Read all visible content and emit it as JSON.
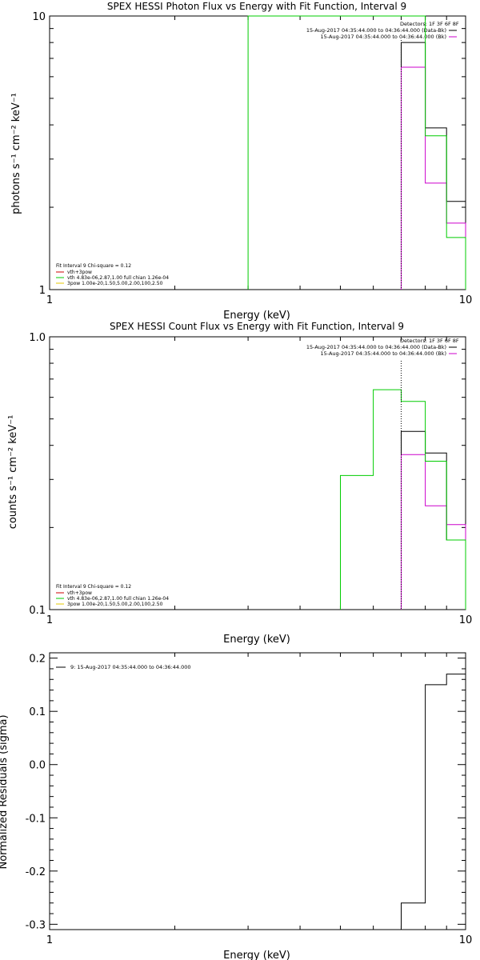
{
  "colors": {
    "background": "#ffffff",
    "axis": "#000000",
    "bk_observed": "#000000",
    "bk_model": "#cc00cc",
    "fit_vth": "#00cc00",
    "fit_vth_alt": "#cc0000",
    "fit_3pow": "#e6c800"
  },
  "chart_data": [
    {
      "type": "line",
      "title": "SPEX HESSI Photon Flux vs Energy with Fit Function, Interval 9",
      "xlabel": "Energy (keV)",
      "ylabel": "photons s⁻¹ cm⁻² keV⁻¹",
      "xscale": "log",
      "yscale": "log",
      "xlim": [
        1,
        10
      ],
      "ylim": [
        1,
        10
      ],
      "x_ticks": [
        "1",
        "10"
      ],
      "y_ticks": [
        "1",
        "10"
      ],
      "legend_top_right": [
        "Detectors: 1F 3F 6F 8F",
        "15-Aug-2017 04:35:44.000 to 04:36:44.000 (Data-Bk)",
        "15-Aug-2017 04:35:44.000 to 04:36:44.000 (Bk)"
      ],
      "legend_bottom_left": [
        "Fit Interval 9   Chi-square = 0.12",
        "vth+3pow",
        "vth 4.83e-06,2.87,1.00  full chian 1.26e-04",
        "3pow 1.00e-20,1.50,5.00,2.00,100,2.50"
      ],
      "series": [
        {
          "name": "(Data-Bk)",
          "x": [
            7,
            8,
            9
          ],
          "y": [
            8.0,
            3.9,
            2.1
          ],
          "color": "#000000"
        },
        {
          "name": "(Bk)",
          "x": [
            7,
            8,
            9,
            10
          ],
          "y": [
            6.5,
            2.45,
            1.75,
            1.55
          ],
          "color": "#cc00cc"
        },
        {
          "name": "vth+3pow",
          "x": [
            3,
            7,
            8,
            9,
            10
          ],
          "y": [
            10,
            10,
            3.65,
            1.55,
            1.0
          ],
          "color": "#00cc00"
        }
      ]
    },
    {
      "type": "line",
      "title": "SPEX HESSI Count Flux vs Energy with Fit Function, Interval 9",
      "xlabel": "Energy (keV)",
      "ylabel": "counts s⁻¹ cm⁻² keV⁻¹",
      "xscale": "log",
      "yscale": "log",
      "xlim": [
        1,
        10
      ],
      "ylim": [
        0.1,
        1.0
      ],
      "x_ticks": [
        "1",
        "10"
      ],
      "y_ticks": [
        "0.1",
        "1.0"
      ],
      "legend_top_right": [
        "Detectors: 1F 3F 6F 8F",
        "15-Aug-2017 04:35:44.000 to 04:36:44.000 (Data-Bk)",
        "15-Aug-2017 04:35:44.000 to 04:36:44.000 (Bk)"
      ],
      "legend_bottom_left": [
        "Fit Interval 9   Chi-square = 0.12",
        "vth+3pow",
        "vth 4.83e-06,2.87,1.00  full chian 1.26e-04",
        "3pow 1.00e-20,1.50,5.00,2.00,100,2.50"
      ],
      "series": [
        {
          "name": "(Data-Bk)",
          "x": [
            7,
            8,
            9
          ],
          "y": [
            0.45,
            0.375,
            0.18
          ],
          "color": "#000000"
        },
        {
          "name": "(Bk)",
          "x": [
            7,
            8,
            9,
            10
          ],
          "y": [
            0.37,
            0.24,
            0.205,
            0.1
          ],
          "color": "#cc00cc"
        },
        {
          "name": "vth+3pow",
          "x": [
            5,
            6,
            7,
            8,
            9,
            10
          ],
          "y": [
            0.31,
            0.64,
            0.58,
            0.35,
            0.18,
            0.1
          ],
          "color": "#00cc00"
        }
      ]
    },
    {
      "type": "line",
      "title": "",
      "xlabel": "Energy (keV)",
      "ylabel": "Normalized Residuals (sigma)",
      "xscale": "log",
      "yscale": "linear",
      "xlim": [
        1,
        10
      ],
      "ylim": [
        -0.31,
        0.21
      ],
      "x_ticks": [
        "1",
        "10"
      ],
      "y_ticks": [
        "0.2",
        "0.1",
        "0.0",
        "-0.1",
        "-0.2",
        "-0.3"
      ],
      "legend_top_left": [
        "9: 15-Aug-2017 04:35:44.000 to 04:36:44.000"
      ],
      "series": [
        {
          "name": "9: 15-Aug-2017 04:35:44.000 to 04:36:44.000",
          "x": [
            7,
            8,
            9,
            10
          ],
          "y": [
            -0.26,
            0.15,
            0.17,
            0.17
          ],
          "color": "#000000"
        }
      ]
    }
  ]
}
